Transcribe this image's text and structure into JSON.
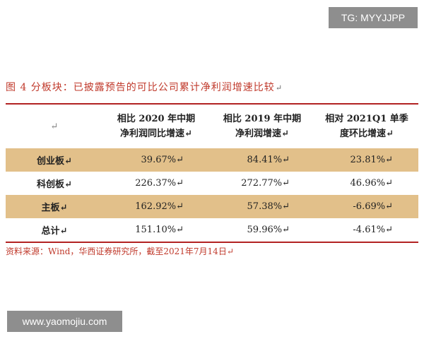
{
  "watermarks": {
    "top": "TG: MYYJJPP",
    "bottom": "www.yaomojiu.com"
  },
  "figure": {
    "title": "图 4  分板块：已披露预告的可比公司累计净利润增速比较",
    "paragraph_mark": "↵"
  },
  "table": {
    "header": {
      "corner": "↵",
      "col1_line1": "相比 2020 年中期",
      "col1_line2": "净利润同比增速↵",
      "col2_line1": "相比 2019 年中期",
      "col2_line2": "净利润增速↵",
      "col3_line1": "相对 2021Q1 单季",
      "col3_line2": "度环比增速↵"
    },
    "rows": [
      {
        "name": "创业板↵",
        "v2020": "39.67%↵",
        "v2019": "84.41%↵",
        "q1": "23.81%↵"
      },
      {
        "name": "科创板↵",
        "v2020": "226.37%↵",
        "v2019": "272.77%↵",
        "q1": "46.96%↵"
      },
      {
        "name": "主板↵",
        "v2020": "162.92%↵",
        "v2019": "57.38%↵",
        "q1": "-6.69%↵"
      },
      {
        "name": "总计↵",
        "v2020": "151.10%↵",
        "v2019": "59.96%↵",
        "q1": "-4.61%↵"
      }
    ],
    "shade_color": "#e2c08a",
    "rule_color": "#b22222"
  },
  "source": "资料来源：Wind，华西证券研究所，截至2021年7月14日↵"
}
